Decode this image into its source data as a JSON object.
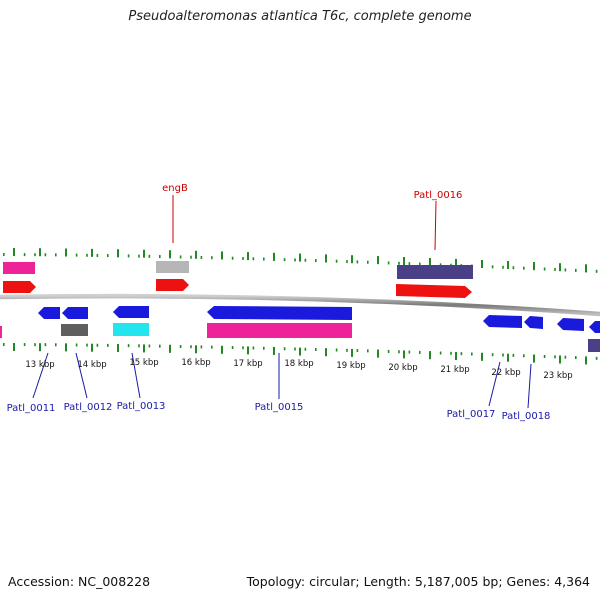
{
  "title": "Pseudoalteromonas atlantica T6c, complete genome",
  "footer": {
    "accession": "Accession: NC_008228",
    "topology": "Topology: circular; Length: 5,187,005 bp; Genes: 4,364"
  },
  "ticks": [
    "13 kbp",
    "14 kbp",
    "15 kbp",
    "16 kbp",
    "17 kbp",
    "18 kbp",
    "19 kbp",
    "20 kbp",
    "21 kbp",
    "22 kbp",
    "23 kbp"
  ],
  "gene_labels": {
    "top": [
      "engB",
      "Patl_0016"
    ],
    "bottom": [
      "Patl_0011",
      "Patl_0012",
      "Patl_0013",
      "Patl_0015",
      "Patl_0017",
      "Patl_0018"
    ]
  },
  "colors": {
    "forward_cds": "#ee1111",
    "reverse_cds": "#1a1add",
    "magenta": "#ee2299",
    "grey": "#b0b0b0",
    "dark_grey": "#606060",
    "cyan": "#22e5ee",
    "slate": "#4a4088",
    "top_label": "#cc0000",
    "bottom_label": "#1a1aaa",
    "tick": "#228822",
    "backbone": "#888888"
  }
}
